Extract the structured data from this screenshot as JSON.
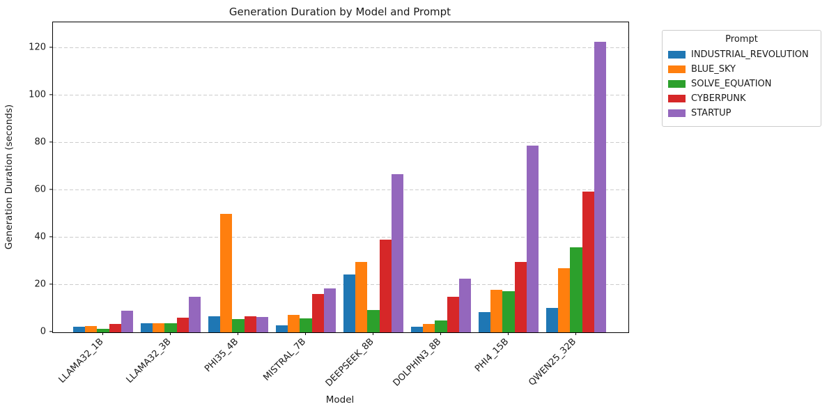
{
  "chart_data": {
    "type": "bar",
    "title": "Generation Duration by Model and Prompt",
    "xlabel": "Model",
    "ylabel": "Generation Duration (seconds)",
    "ylim": [
      0,
      130.8
    ],
    "yticks": [
      0,
      20,
      40,
      60,
      80,
      100,
      120
    ],
    "grid": "horizontal dashed gridlines",
    "legend_title": "Prompt",
    "legend_position": "outside upper right",
    "x_tick_rotation_deg": 45,
    "categories": [
      "LLAMA32_1B",
      "LLAMA32_3B",
      "PHI35_4B",
      "MISTRAL_7B",
      "DEEPSEEK_8B",
      "DOLPHIN3_8B",
      "PHI4_15B",
      "QWEN25_32B"
    ],
    "series": [
      {
        "name": "INDUSTRIAL_REVOLUTION",
        "color": "#1f77b4",
        "values": [
          2.3,
          3.9,
          6.9,
          2.9,
          24.5,
          2.3,
          8.6,
          10.2
        ]
      },
      {
        "name": "BLUE_SKY",
        "color": "#ff7f0e",
        "values": [
          2.6,
          3.9,
          49.9,
          7.3,
          29.8,
          3.5,
          17.8,
          27.1
        ]
      },
      {
        "name": "SOLVE_EQUATION",
        "color": "#2ca02c",
        "values": [
          1.6,
          3.9,
          5.6,
          5.8,
          9.4,
          5.1,
          17.4,
          35.8
        ]
      },
      {
        "name": "CYBERPUNK",
        "color": "#d62728",
        "values": [
          3.5,
          6.3,
          6.9,
          16.2,
          39.2,
          15.0,
          29.7,
          59.4
        ]
      },
      {
        "name": "STARTUP",
        "color": "#9467bd",
        "values": [
          9.0,
          15.1,
          6.6,
          18.5,
          66.6,
          22.7,
          78.8,
          122.7
        ]
      }
    ]
  }
}
